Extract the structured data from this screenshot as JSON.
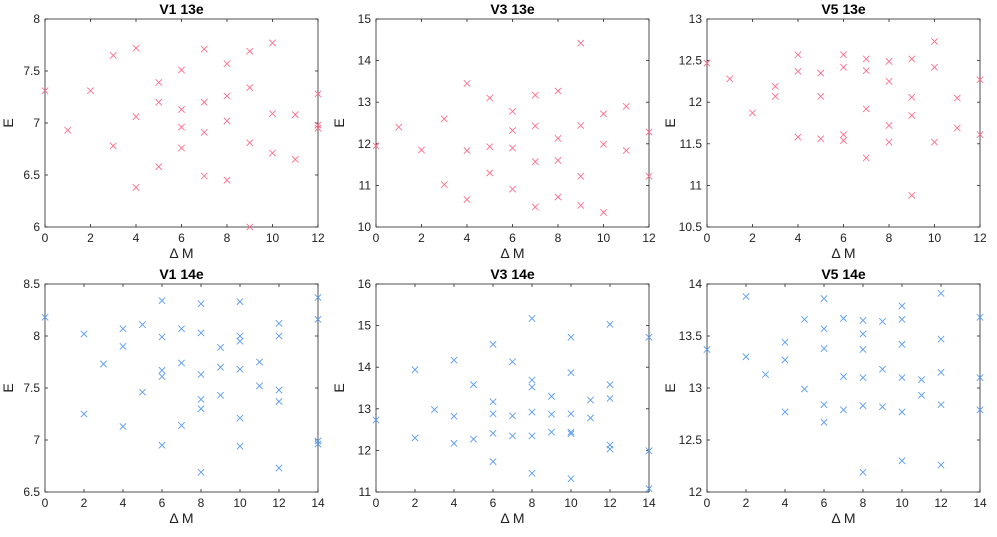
{
  "chart_data": [
    {
      "type": "scatter",
      "title": "V1 13e",
      "xlabel": "Δ M",
      "ylabel": "E",
      "xlim": [
        0,
        12
      ],
      "ylim": [
        6,
        8
      ],
      "xticks": [
        0,
        2,
        4,
        6,
        8,
        10,
        12
      ],
      "yticks": [
        6,
        6.5,
        7,
        7.5,
        8
      ],
      "color": "#ff6f8e",
      "marker": "x",
      "points": [
        [
          0,
          7.31
        ],
        [
          1,
          6.93
        ],
        [
          2,
          7.31
        ],
        [
          3,
          7.65
        ],
        [
          3,
          6.78
        ],
        [
          4,
          7.72
        ],
        [
          4,
          7.06
        ],
        [
          4,
          6.38
        ],
        [
          5,
          7.39
        ],
        [
          5,
          7.2
        ],
        [
          5,
          6.58
        ],
        [
          6,
          7.51
        ],
        [
          6,
          7.13
        ],
        [
          6,
          6.96
        ],
        [
          6,
          6.76
        ],
        [
          7,
          7.71
        ],
        [
          7,
          7.2
        ],
        [
          7,
          6.91
        ],
        [
          7,
          6.49
        ],
        [
          8,
          7.57
        ],
        [
          8,
          7.26
        ],
        [
          8,
          7.02
        ],
        [
          8,
          6.45
        ],
        [
          9,
          7.69
        ],
        [
          9,
          7.34
        ],
        [
          9,
          6.81
        ],
        [
          9,
          6.0
        ],
        [
          10,
          7.77
        ],
        [
          10,
          7.09
        ],
        [
          10,
          6.71
        ],
        [
          11,
          7.08
        ],
        [
          11,
          6.65
        ],
        [
          12,
          7.28
        ],
        [
          12,
          6.98
        ],
        [
          12,
          6.95
        ]
      ]
    },
    {
      "type": "scatter",
      "title": "V3 13e",
      "xlabel": "Δ M",
      "ylabel": "E",
      "xlim": [
        0,
        12
      ],
      "ylim": [
        10,
        15
      ],
      "xticks": [
        0,
        2,
        4,
        6,
        8,
        10,
        12
      ],
      "yticks": [
        10,
        11,
        12,
        13,
        14,
        15
      ],
      "color": "#ff6f8e",
      "marker": "x",
      "points": [
        [
          0,
          11.95
        ],
        [
          1,
          12.4
        ],
        [
          2,
          11.85
        ],
        [
          3,
          12.6
        ],
        [
          3,
          11.02
        ],
        [
          4,
          13.45
        ],
        [
          4,
          11.84
        ],
        [
          4,
          10.66
        ],
        [
          5,
          13.1
        ],
        [
          5,
          11.93
        ],
        [
          5,
          11.3
        ],
        [
          6,
          12.78
        ],
        [
          6,
          12.32
        ],
        [
          6,
          11.9
        ],
        [
          6,
          10.91
        ],
        [
          7,
          13.17
        ],
        [
          7,
          12.43
        ],
        [
          7,
          11.57
        ],
        [
          7,
          10.48
        ],
        [
          8,
          13.27
        ],
        [
          8,
          12.13
        ],
        [
          8,
          11.6
        ],
        [
          8,
          10.72
        ],
        [
          9,
          14.42
        ],
        [
          9,
          12.44
        ],
        [
          9,
          11.22
        ],
        [
          9,
          10.52
        ],
        [
          10,
          12.72
        ],
        [
          10,
          11.99
        ],
        [
          10,
          10.35
        ],
        [
          11,
          12.9
        ],
        [
          11,
          11.84
        ],
        [
          12,
          12.28
        ],
        [
          12,
          11.22
        ]
      ]
    },
    {
      "type": "scatter",
      "title": "V5 13e",
      "xlabel": "Δ M",
      "ylabel": "E",
      "xlim": [
        0,
        12
      ],
      "ylim": [
        10.5,
        13
      ],
      "xticks": [
        0,
        2,
        4,
        6,
        8,
        10,
        12
      ],
      "yticks": [
        10.5,
        11,
        11.5,
        12,
        12.5,
        13
      ],
      "color": "#ff6f8e",
      "marker": "x",
      "points": [
        [
          0,
          12.47
        ],
        [
          1,
          12.28
        ],
        [
          2,
          11.87
        ],
        [
          3,
          12.19
        ],
        [
          3,
          12.07
        ],
        [
          4,
          12.57
        ],
        [
          4,
          12.37
        ],
        [
          4,
          11.58
        ],
        [
          5,
          12.35
        ],
        [
          5,
          12.07
        ],
        [
          5,
          11.56
        ],
        [
          6,
          12.57
        ],
        [
          6,
          12.42
        ],
        [
          6,
          11.61
        ],
        [
          6,
          11.54
        ],
        [
          7,
          12.52
        ],
        [
          7,
          12.38
        ],
        [
          7,
          11.92
        ],
        [
          7,
          11.33
        ],
        [
          8,
          12.49
        ],
        [
          8,
          12.25
        ],
        [
          8,
          11.72
        ],
        [
          8,
          11.52
        ],
        [
          9,
          12.52
        ],
        [
          9,
          12.06
        ],
        [
          9,
          11.84
        ],
        [
          9,
          10.88
        ],
        [
          10,
          12.73
        ],
        [
          10,
          12.42
        ],
        [
          10,
          11.52
        ],
        [
          11,
          12.05
        ],
        [
          11,
          11.69
        ],
        [
          12,
          12.27
        ],
        [
          12,
          11.61
        ]
      ]
    },
    {
      "type": "scatter",
      "title": "V1 14e",
      "xlabel": "Δ M",
      "ylabel": "E",
      "xlim": [
        0,
        14
      ],
      "ylim": [
        6.5,
        8.5
      ],
      "xticks": [
        0,
        2,
        4,
        6,
        8,
        10,
        12,
        14
      ],
      "yticks": [
        6.5,
        7,
        7.5,
        8,
        8.5
      ],
      "color": "#5b9df5",
      "marker": "x",
      "points": [
        [
          0,
          8.18
        ],
        [
          2,
          8.02
        ],
        [
          2,
          7.25
        ],
        [
          3,
          7.73
        ],
        [
          4,
          8.07
        ],
        [
          4,
          7.9
        ],
        [
          4,
          7.13
        ],
        [
          5,
          8.11
        ],
        [
          5,
          7.46
        ],
        [
          6,
          8.34
        ],
        [
          6,
          7.99
        ],
        [
          6,
          7.67
        ],
        [
          6,
          7.61
        ],
        [
          6,
          6.95
        ],
        [
          7,
          8.07
        ],
        [
          7,
          7.74
        ],
        [
          7,
          7.14
        ],
        [
          8,
          8.31
        ],
        [
          8,
          8.03
        ],
        [
          8,
          7.63
        ],
        [
          8,
          7.39
        ],
        [
          8,
          7.3
        ],
        [
          8,
          6.69
        ],
        [
          9,
          7.89
        ],
        [
          9,
          7.7
        ],
        [
          9,
          7.43
        ],
        [
          10,
          8.33
        ],
        [
          10,
          8.0
        ],
        [
          10,
          7.95
        ],
        [
          10,
          7.68
        ],
        [
          10,
          7.21
        ],
        [
          10,
          6.94
        ],
        [
          11,
          7.75
        ],
        [
          11,
          7.52
        ],
        [
          12,
          8.12
        ],
        [
          12,
          8.0
        ],
        [
          12,
          7.48
        ],
        [
          12,
          7.37
        ],
        [
          12,
          6.73
        ],
        [
          14,
          8.37
        ],
        [
          14,
          8.16
        ],
        [
          14,
          6.99
        ],
        [
          14,
          6.96
        ]
      ]
    },
    {
      "type": "scatter",
      "title": "V3 14e",
      "xlabel": "Δ M",
      "ylabel": "E",
      "xlim": [
        0,
        14
      ],
      "ylim": [
        11,
        16
      ],
      "xticks": [
        0,
        2,
        4,
        6,
        8,
        10,
        12,
        14
      ],
      "yticks": [
        11,
        12,
        13,
        14,
        15,
        16
      ],
      "color": "#5b9df5",
      "marker": "x",
      "points": [
        [
          0,
          12.73
        ],
        [
          2,
          13.94
        ],
        [
          2,
          12.3
        ],
        [
          3,
          12.98
        ],
        [
          4,
          14.17
        ],
        [
          4,
          12.82
        ],
        [
          4,
          12.17
        ],
        [
          5,
          13.58
        ],
        [
          5,
          12.27
        ],
        [
          6,
          14.55
        ],
        [
          6,
          13.17
        ],
        [
          6,
          12.88
        ],
        [
          6,
          12.41
        ],
        [
          6,
          11.73
        ],
        [
          7,
          14.13
        ],
        [
          7,
          12.83
        ],
        [
          7,
          12.35
        ],
        [
          8,
          15.17
        ],
        [
          8,
          13.69
        ],
        [
          8,
          13.52
        ],
        [
          8,
          12.92
        ],
        [
          8,
          12.35
        ],
        [
          8,
          11.45
        ],
        [
          9,
          13.3
        ],
        [
          9,
          12.87
        ],
        [
          9,
          12.44
        ],
        [
          10,
          14.72
        ],
        [
          10,
          13.87
        ],
        [
          10,
          12.88
        ],
        [
          10,
          12.44
        ],
        [
          10,
          12.4
        ],
        [
          10,
          11.32
        ],
        [
          11,
          13.21
        ],
        [
          11,
          12.78
        ],
        [
          12,
          15.03
        ],
        [
          12,
          13.58
        ],
        [
          12,
          13.25
        ],
        [
          12,
          12.13
        ],
        [
          12,
          12.03
        ],
        [
          14,
          14.72
        ],
        [
          14,
          11.99
        ],
        [
          14,
          11.08
        ]
      ]
    },
    {
      "type": "scatter",
      "title": "V5 14e",
      "xlabel": "Δ M",
      "ylabel": "E",
      "xlim": [
        0,
        14
      ],
      "ylim": [
        12,
        14
      ],
      "xticks": [
        0,
        2,
        4,
        6,
        8,
        10,
        12,
        14
      ],
      "yticks": [
        12,
        12.5,
        13,
        13.5,
        14
      ],
      "color": "#5b9df5",
      "marker": "x",
      "points": [
        [
          0,
          13.37
        ],
        [
          2,
          13.88
        ],
        [
          2,
          13.3
        ],
        [
          3,
          13.13
        ],
        [
          4,
          13.44
        ],
        [
          4,
          13.27
        ],
        [
          4,
          12.77
        ],
        [
          5,
          13.66
        ],
        [
          5,
          12.99
        ],
        [
          6,
          13.86
        ],
        [
          6,
          13.57
        ],
        [
          6,
          13.38
        ],
        [
          6,
          12.84
        ],
        [
          6,
          12.67
        ],
        [
          7,
          13.67
        ],
        [
          7,
          13.11
        ],
        [
          7,
          12.79
        ],
        [
          8,
          13.65
        ],
        [
          8,
          13.52
        ],
        [
          8,
          13.37
        ],
        [
          8,
          13.1
        ],
        [
          8,
          12.83
        ],
        [
          8,
          12.19
        ],
        [
          9,
          13.64
        ],
        [
          9,
          13.18
        ],
        [
          9,
          12.82
        ],
        [
          10,
          13.79
        ],
        [
          10,
          13.66
        ],
        [
          10,
          13.42
        ],
        [
          10,
          13.1
        ],
        [
          10,
          12.77
        ],
        [
          10,
          12.3
        ],
        [
          11,
          13.08
        ],
        [
          11,
          12.93
        ],
        [
          12,
          13.91
        ],
        [
          12,
          13.47
        ],
        [
          12,
          13.15
        ],
        [
          12,
          12.84
        ],
        [
          12,
          12.26
        ],
        [
          14,
          13.68
        ],
        [
          14,
          13.1
        ],
        [
          14,
          12.79
        ]
      ]
    }
  ]
}
